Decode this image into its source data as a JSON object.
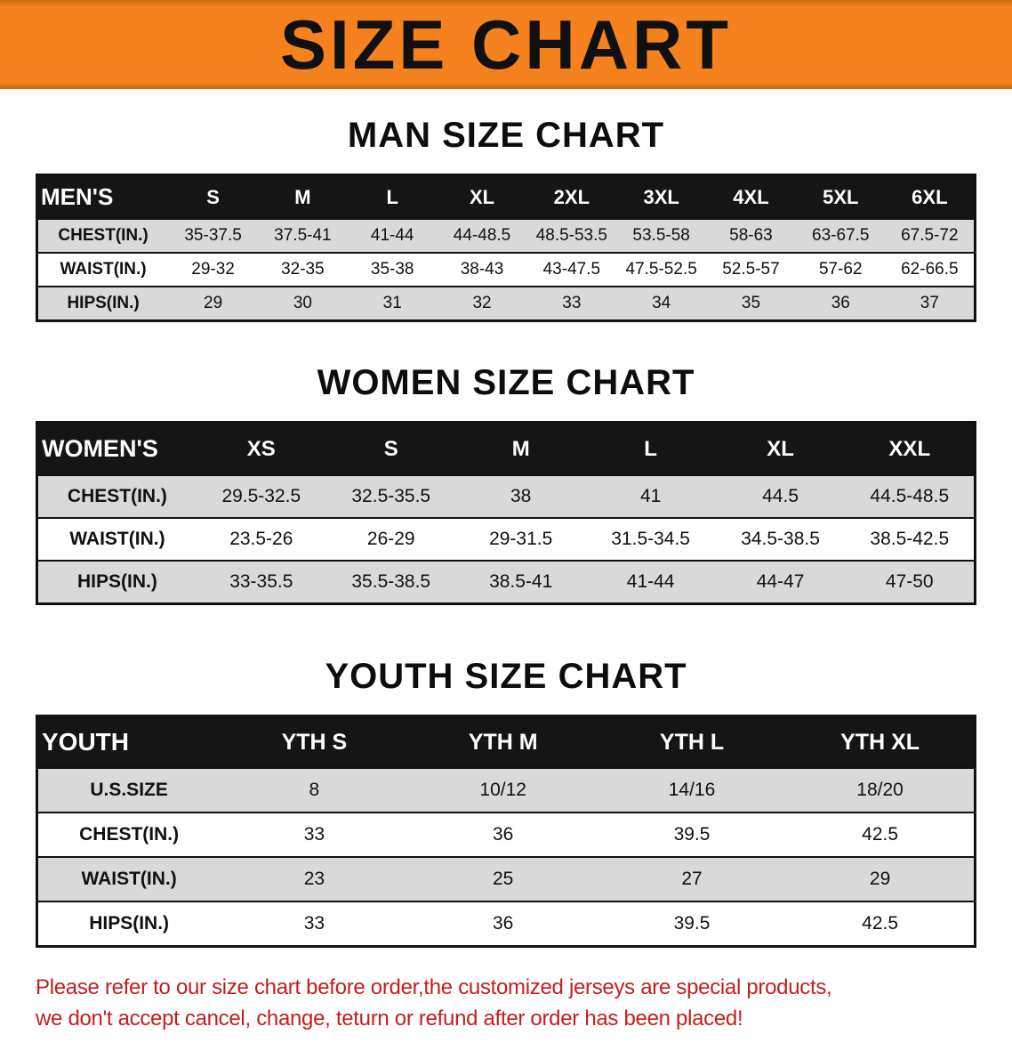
{
  "banner": {
    "title": "SIZE CHART"
  },
  "colors": {
    "banner_bg": "#f6821f",
    "table_header_bg": "#151515",
    "row_stripe": "#d9d9d9",
    "disclaimer_text": "#c41e1e"
  },
  "sections": {
    "men": {
      "title": "MAN SIZE CHART",
      "table": {
        "header": [
          "MEN'S",
          "S",
          "M",
          "L",
          "XL",
          "2XL",
          "3XL",
          "4XL",
          "5XL",
          "6XL"
        ],
        "rows": [
          [
            "CHEST(IN.)",
            "35-37.5",
            "37.5-41",
            "41-44",
            "44-48.5",
            "48.5-53.5",
            "53.5-58",
            "58-63",
            "63-67.5",
            "67.5-72"
          ],
          [
            "WAIST(IN.)",
            "29-32",
            "32-35",
            "35-38",
            "38-43",
            "43-47.5",
            "47.5-52.5",
            "52.5-57",
            "57-62",
            "62-66.5"
          ],
          [
            "HIPS(IN.)",
            "29",
            "30",
            "31",
            "32",
            "33",
            "34",
            "35",
            "36",
            "37"
          ]
        ]
      }
    },
    "women": {
      "title": "WOMEN SIZE CHART",
      "table": {
        "header": [
          "WOMEN'S",
          "XS",
          "S",
          "M",
          "L",
          "XL",
          "XXL"
        ],
        "rows": [
          [
            "CHEST(IN.)",
            "29.5-32.5",
            "32.5-35.5",
            "38",
            "41",
            "44.5",
            "44.5-48.5"
          ],
          [
            "WAIST(IN.)",
            "23.5-26",
            "26-29",
            "29-31.5",
            "31.5-34.5",
            "34.5-38.5",
            "38.5-42.5"
          ],
          [
            "HIPS(IN.)",
            "33-35.5",
            "35.5-38.5",
            "38.5-41",
            "41-44",
            "44-47",
            "47-50"
          ]
        ]
      }
    },
    "youth": {
      "title": "YOUTH SIZE CHART",
      "table": {
        "header": [
          "YOUTH",
          "YTH S",
          "YTH M",
          "YTH L",
          "YTH XL"
        ],
        "rows": [
          [
            "U.S.SIZE",
            "8",
            "10/12",
            "14/16",
            "18/20"
          ],
          [
            "CHEST(IN.)",
            "33",
            "36",
            "39.5",
            "42.5"
          ],
          [
            "WAIST(IN.)",
            "23",
            "25",
            "27",
            "29"
          ],
          [
            "HIPS(IN.)",
            "33",
            "36",
            "39.5",
            "42.5"
          ]
        ]
      }
    }
  },
  "disclaimer": {
    "line1": "Please refer to our size chart before order,the customized jerseys are special products,",
    "line2": "we don't accept cancel, change, teturn or refund after order has been placed!"
  }
}
